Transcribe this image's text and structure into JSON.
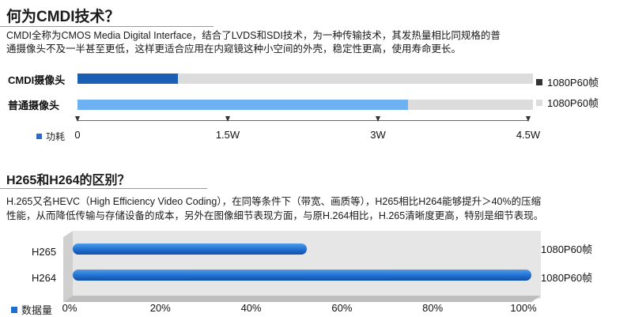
{
  "section1": {
    "heading": "何为CMDI技术？",
    "line1": "CMDI全称为CMOS Media Digital  Interface，结合了LVDS和SDI技术，为一种传输技术，其发热量相比同规格的普",
    "line2": "通摄像头不及一半甚至更低，这样更适合应用在内窥镜这种小空间的外壳，稳定性更高，使用寿命更长。"
  },
  "section2": {
    "heading": "H265和H264的区别？",
    "line1": "H.265又名HEVC（High Efficiency Video Coding），在同等条件下（带宽、画质等），H265相比H264能够提升＞40%的压缩",
    "line2": "性能，从而降低传输与存储设备的成本，另外在图像细节表现方面，与原H.264相比，H.265清晰度更高，特别是细节表现。"
  },
  "chart_data": [
    {
      "type": "bar",
      "orientation": "horizontal",
      "categories": [
        "CMDI摄像头",
        "普通摄像头"
      ],
      "series": [
        {
          "name": "功耗",
          "values": [
            1.0,
            3.3
          ]
        }
      ],
      "xlim": [
        0,
        4.5
      ],
      "xticks": [
        "0",
        "1.5W",
        "3W",
        "4.5W"
      ],
      "xtick_values": [
        0,
        1.5,
        3,
        4.5
      ],
      "legend": [
        "1080P60帧",
        "1080P60帧"
      ],
      "legend_colors": [
        "#333333",
        "#dcdcdc"
      ],
      "bar_colors": [
        "#1a5fb4",
        "#6db1f2"
      ],
      "axis_legend": "功耗",
      "axis_legend_color": "#2d6bc4"
    },
    {
      "type": "bar",
      "orientation": "horizontal",
      "categories": [
        "H265",
        "H264"
      ],
      "series": [
        {
          "name": "数据量",
          "values": [
            51,
            100
          ]
        }
      ],
      "xlim": [
        0,
        100
      ],
      "xticks": [
        "0%",
        "20%",
        "40%",
        "60%",
        "80%",
        "100%"
      ],
      "xtick_values": [
        0,
        20,
        40,
        60,
        80,
        100
      ],
      "legend": [
        "1080P60帧",
        "1080P60帧"
      ],
      "axis_legend": "数据量",
      "bar_color": "#1f6fd0"
    }
  ]
}
